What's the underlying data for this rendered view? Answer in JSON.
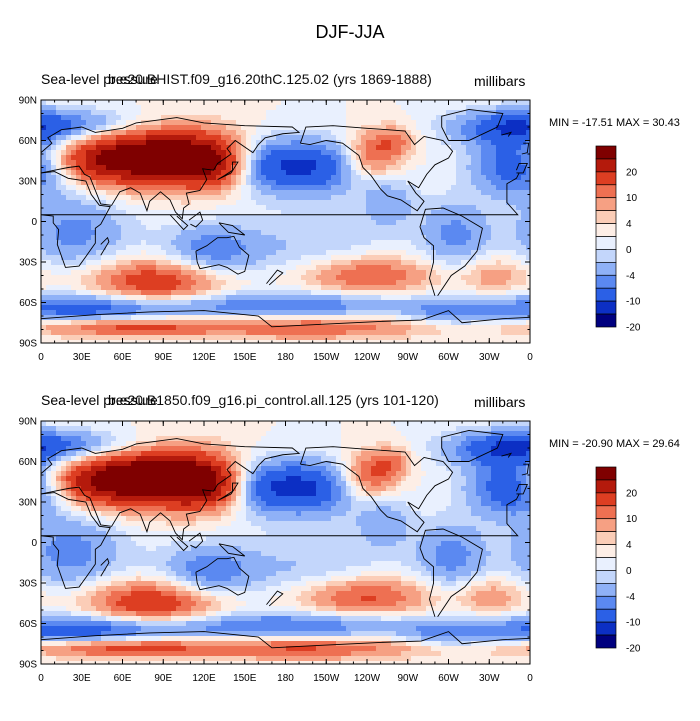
{
  "figure_title": "DJF-JJA",
  "colors": {
    "levels": [
      "#00007f",
      "#0c2fc4",
      "#2b60e6",
      "#5b89f1",
      "#8fb1f7",
      "#c3d6fb",
      "#e9f0fe",
      "#fdeee6",
      "#fbcdb7",
      "#f6a083",
      "#ee7052",
      "#dd3e22",
      "#b41a0c",
      "#7f0000"
    ]
  },
  "chart_data": [
    {
      "type": "heatmap",
      "left_title": "Sea-level pressure",
      "center_title": "b.e20.BHIST.f09_g16.20thC.125.02 (yrs 1869-1888)",
      "units": "millibars",
      "min_max": "MIN = -17.51 MAX =  30.43",
      "x_ticks": [
        "0",
        "30E",
        "60E",
        "90E",
        "120E",
        "150E",
        "180",
        "150W",
        "120W",
        "90W",
        "60W",
        "30W",
        "0"
      ],
      "y_ticks": [
        "90N",
        "60N",
        "30N",
        "0",
        "30S",
        "60S",
        "90S"
      ],
      "xlim": [
        0,
        360
      ],
      "ylim": [
        -90,
        90
      ],
      "colorbar_labels": [
        "20",
        "10",
        "4",
        "0",
        "-4",
        "-10",
        "-20"
      ],
      "grid": false
    },
    {
      "type": "heatmap",
      "left_title": "Sea-level pressure",
      "center_title": "b.e20.B1850.f09_g16.pi_control.all.125 (yrs 101-120)",
      "units": "millibars",
      "min_max": "MIN = -20.90 MAX =  29.64",
      "x_ticks": [
        "0",
        "30E",
        "60E",
        "90E",
        "120E",
        "150E",
        "180",
        "150W",
        "120W",
        "90W",
        "60W",
        "30W",
        "0"
      ],
      "y_ticks": [
        "90N",
        "60N",
        "30N",
        "0",
        "30S",
        "60S",
        "90S"
      ],
      "xlim": [
        0,
        360
      ],
      "ylim": [
        -90,
        90
      ],
      "colorbar_labels": [
        "20",
        "10",
        "4",
        "0",
        "-4",
        "-10",
        "-20"
      ],
      "grid": false
    }
  ]
}
